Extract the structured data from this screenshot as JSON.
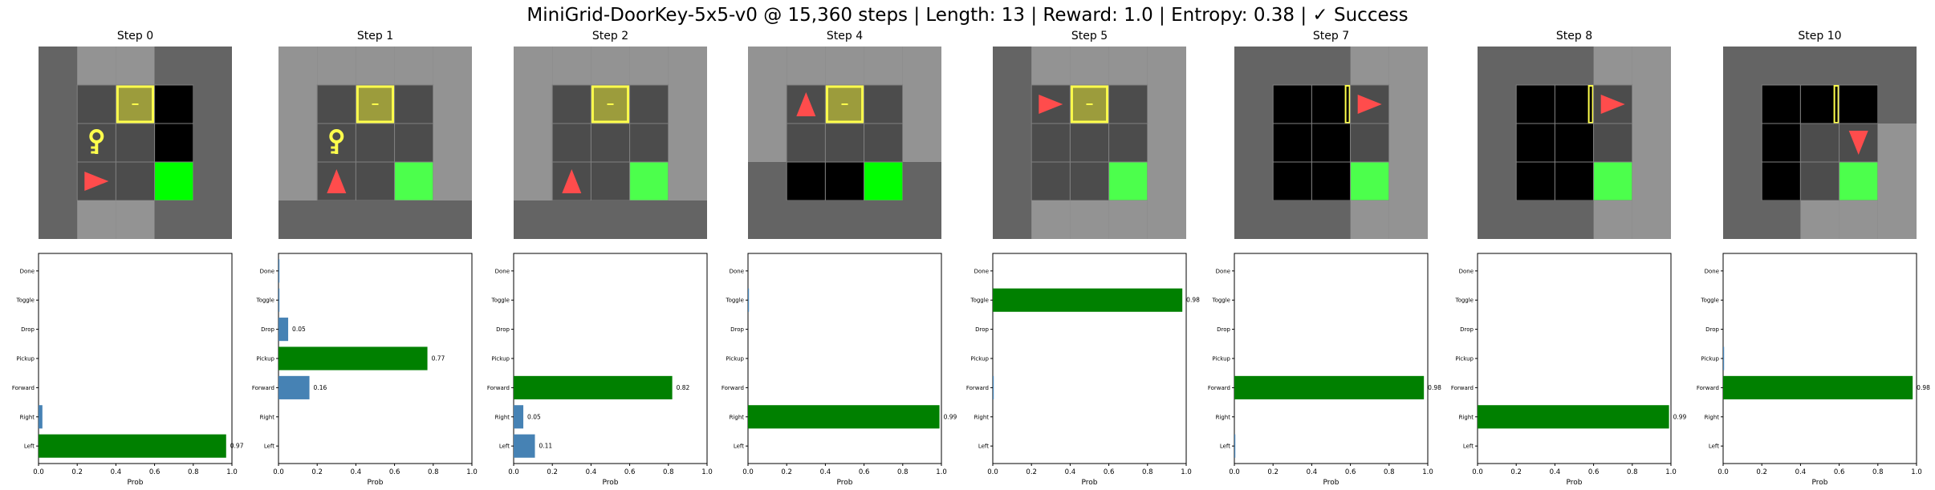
{
  "title": "MiniGrid-DoorKey-5x5-v0 @ 15,360 steps | Length: 13 | Reward: 1.0 | Entropy: 0.38 | ✓ Success",
  "colors": {
    "chosen_bar": "#008000",
    "other_bar": "#4682b4",
    "wall": "#646464",
    "floor": "#000000",
    "visible_floor_tint": "#4c4c4c",
    "visible_wall_tint": "#939393",
    "goal": "#00ff00",
    "goal_visible": "#4cff4c",
    "agent": "#ff4c4c",
    "key": "#ffff4c",
    "door": "#ffff4c"
  },
  "chart_data": {
    "type": "bar",
    "orientation": "horizontal",
    "categories": [
      "Left",
      "Right",
      "Forward",
      "Pickup",
      "Drop",
      "Toggle",
      "Done"
    ],
    "xlabel": "Prob",
    "xlim": [
      0,
      1
    ],
    "xticks": [
      "0.0",
      "0.2",
      "0.4",
      "0.6",
      "0.8",
      "1.0"
    ],
    "panels": [
      {
        "title": "Step 0",
        "values": [
          0.97,
          0.02,
          0.0,
          0.0,
          0.0,
          0.0,
          0.0
        ],
        "chosen": 0,
        "labels": [
          "0.97",
          "",
          "",
          "",
          "",
          "",
          ""
        ]
      },
      {
        "title": "Step 1",
        "values": [
          0.0,
          0.0,
          0.16,
          0.77,
          0.05,
          0.005,
          0.005
        ],
        "chosen": 3,
        "labels": [
          "",
          "",
          "0.16",
          "0.77",
          "0.05",
          "",
          ""
        ]
      },
      {
        "title": "Step 2",
        "values": [
          0.11,
          0.05,
          0.82,
          0.0,
          0.0,
          0.0,
          0.0
        ],
        "chosen": 2,
        "labels": [
          "0.11",
          "0.05",
          "0.82",
          "",
          "",
          "",
          ""
        ]
      },
      {
        "title": "Step 4",
        "values": [
          0.0,
          0.99,
          0.0,
          0.0,
          0.0,
          0.005,
          0.0
        ],
        "chosen": 1,
        "labels": [
          "",
          "0.99",
          "",
          "",
          "",
          "",
          ""
        ]
      },
      {
        "title": "Step 5",
        "values": [
          0.0,
          0.0,
          0.005,
          0.0,
          0.0,
          0.98,
          0.0
        ],
        "chosen": 5,
        "labels": [
          "",
          "",
          "",
          "",
          "",
          "0.98",
          ""
        ]
      },
      {
        "title": "Step 7",
        "values": [
          0.005,
          0.0,
          0.98,
          0.0,
          0.0,
          0.0,
          0.0
        ],
        "chosen": 2,
        "labels": [
          "",
          "",
          "0.98",
          "",
          "",
          "",
          ""
        ]
      },
      {
        "title": "Step 8",
        "values": [
          0.0,
          0.99,
          0.0,
          0.0,
          0.0,
          0.0,
          0.0
        ],
        "chosen": 1,
        "labels": [
          "",
          "0.99",
          "",
          "",
          "",
          "",
          ""
        ]
      },
      {
        "title": "Step 10",
        "values": [
          0.0,
          0.0,
          0.98,
          0.005,
          0.0,
          0.0,
          0.0
        ],
        "chosen": 2,
        "labels": [
          "",
          "",
          "0.98",
          "",
          "",
          "",
          ""
        ]
      }
    ]
  },
  "frames": [
    {
      "rows": [
        "WVVWW",
        "WFDFW",
        "WKFFW",
        "WAGGW",
        "WVVWW"
      ],
      "vis": [
        [
          0,
          1,
          1,
          0,
          0
        ],
        [
          0,
          1,
          1,
          0,
          0
        ],
        [
          0,
          1,
          1,
          0,
          0
        ],
        [
          0,
          1,
          1,
          0,
          0
        ],
        [
          0,
          1,
          1,
          0,
          0
        ]
      ],
      "agent_dir": "right",
      "grid": [
        "WWWWW",
        "WFDFW",
        "WKFFW",
        "WAFGW",
        "WWWWW"
      ]
    },
    {
      "grid": [
        "WWWWW",
        "WFDFW",
        "WKFFW",
        "WAFGW",
        "WWWWW"
      ],
      "agent_dir": "up"
    },
    {
      "grid": [
        "WWWWW",
        "WFDFW",
        "WFFFW",
        "WAFGW",
        "WWWWW"
      ],
      "agent_dir": "up"
    },
    {
      "grid": [
        "WWWWW",
        "WADFW",
        "WFFFW",
        "WFFGW",
        "WWWWW"
      ],
      "agent_dir": "up"
    },
    {
      "grid": [
        "WWWWW",
        "WADFW",
        "WFFFW",
        "WFFGW",
        "WWWWW"
      ],
      "agent_dir": "right"
    },
    {
      "grid": [
        "WWWWW",
        "WFOAW",
        "WFFFW",
        "WFFGW",
        "WWWWW"
      ],
      "agent_dir": "right"
    },
    {
      "grid": [
        "WWWWW",
        "WFOAW",
        "WFFFW",
        "WFFGW",
        "WWWWW"
      ],
      "agent_dir": "right"
    },
    {
      "grid": [
        "WWWWW",
        "WFOFW",
        "WFFAW",
        "WFFGW",
        "WWWWW"
      ],
      "agent_dir": "down"
    }
  ]
}
